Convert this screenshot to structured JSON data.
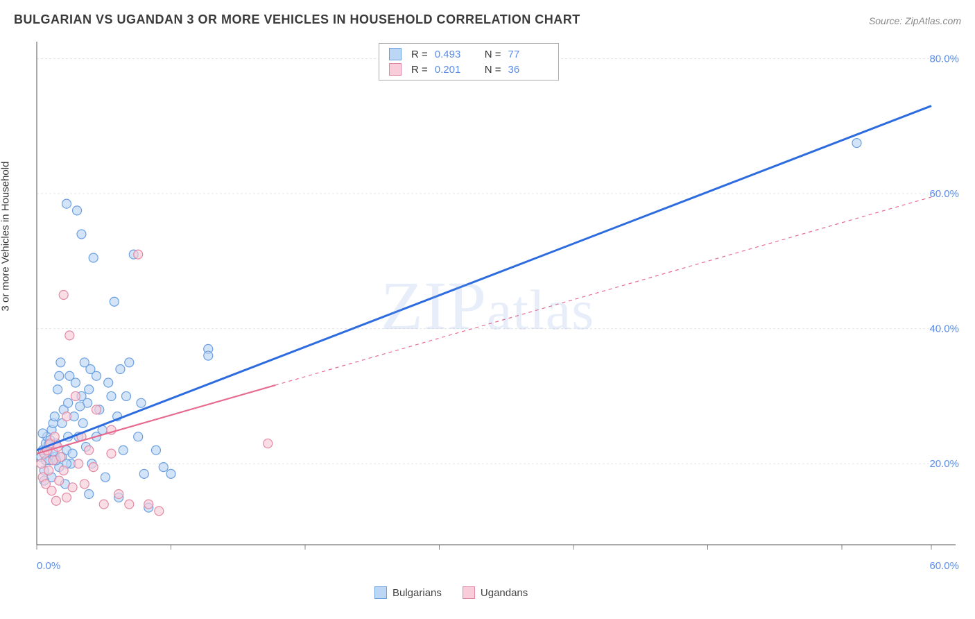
{
  "title": "BULGARIAN VS UGANDAN 3 OR MORE VEHICLES IN HOUSEHOLD CORRELATION CHART",
  "source": "Source: ZipAtlas.com",
  "ylabel": "3 or more Vehicles in Household",
  "watermark": "ZIPatlas",
  "chart": {
    "type": "scatter",
    "xlim": [
      0,
      60
    ],
    "ylim": [
      8,
      82
    ],
    "background_color": "#ffffff",
    "grid_color": "#e5e5e5",
    "grid_dash": "3,3",
    "axis_color": "#555555",
    "marker_radius": 6.5,
    "marker_stroke_width": 1.2,
    "x_ticks": [
      0,
      9,
      18,
      27,
      36,
      45,
      54,
      60
    ],
    "x_tick_labels": {
      "0": "0.0%",
      "60": "60.0%"
    },
    "y_gridlines": [
      20,
      40,
      60,
      80
    ],
    "y_tick_labels": {
      "20": "20.0%",
      "40": "40.0%",
      "60": "60.0%",
      "80": "80.0%"
    },
    "series": [
      {
        "name": "Bulgarians",
        "color_fill": "#bcd6f5",
        "color_stroke": "#6a9fe0",
        "trend_color": "#2d6cdf",
        "trend_width": 3,
        "trend": {
          "x1": 0,
          "y1": 22,
          "x2": 60,
          "y2": 73,
          "solid_until_x": 60
        },
        "R": "0.493",
        "N": "77",
        "points": [
          [
            0.3,
            21
          ],
          [
            0.4,
            22
          ],
          [
            0.5,
            19
          ],
          [
            0.6,
            23
          ],
          [
            0.7,
            24
          ],
          [
            0.8,
            21.5
          ],
          [
            0.9,
            20.5
          ],
          [
            1.0,
            25
          ],
          [
            1.0,
            18
          ],
          [
            1.1,
            26
          ],
          [
            1.2,
            27
          ],
          [
            1.3,
            23
          ],
          [
            1.4,
            31
          ],
          [
            1.5,
            33
          ],
          [
            1.5,
            19.5
          ],
          [
            1.6,
            35
          ],
          [
            1.7,
            21
          ],
          [
            1.8,
            28
          ],
          [
            1.9,
            17
          ],
          [
            2.0,
            58.5
          ],
          [
            2.0,
            22
          ],
          [
            2.1,
            29
          ],
          [
            2.2,
            33
          ],
          [
            2.3,
            20
          ],
          [
            2.5,
            27
          ],
          [
            2.6,
            32
          ],
          [
            2.7,
            57.5
          ],
          [
            2.8,
            24
          ],
          [
            3.0,
            54
          ],
          [
            3.0,
            30
          ],
          [
            3.2,
            35
          ],
          [
            3.3,
            22.5
          ],
          [
            3.4,
            29
          ],
          [
            3.5,
            15.5
          ],
          [
            3.6,
            34
          ],
          [
            3.7,
            20
          ],
          [
            3.8,
            50.5
          ],
          [
            4.0,
            33
          ],
          [
            4.2,
            28
          ],
          [
            4.4,
            25
          ],
          [
            4.6,
            18
          ],
          [
            4.8,
            32
          ],
          [
            5.0,
            30
          ],
          [
            5.2,
            44
          ],
          [
            5.4,
            27
          ],
          [
            5.5,
            15
          ],
          [
            5.6,
            34
          ],
          [
            5.8,
            22
          ],
          [
            6.0,
            30
          ],
          [
            6.2,
            35
          ],
          [
            6.5,
            51
          ],
          [
            6.8,
            24
          ],
          [
            7.0,
            29
          ],
          [
            7.2,
            18.5
          ],
          [
            7.5,
            13.5
          ],
          [
            8.0,
            22
          ],
          [
            8.5,
            19.5
          ],
          [
            9.0,
            18.5
          ],
          [
            11.5,
            37
          ],
          [
            11.5,
            36
          ],
          [
            55,
            67.5
          ],
          [
            1.2,
            21
          ],
          [
            1.3,
            20.5
          ],
          [
            0.9,
            23.5
          ],
          [
            2.1,
            24
          ],
          [
            2.4,
            21.5
          ],
          [
            3.1,
            26
          ],
          [
            0.4,
            24.5
          ],
          [
            0.6,
            20.5
          ],
          [
            0.8,
            22.8
          ],
          [
            1.1,
            21.8
          ],
          [
            1.7,
            26
          ],
          [
            2.0,
            20
          ],
          [
            2.9,
            28.5
          ],
          [
            3.5,
            31
          ],
          [
            4.0,
            24
          ],
          [
            0.5,
            17.5
          ]
        ]
      },
      {
        "name": "Ugandans",
        "color_fill": "#f8cdd9",
        "color_stroke": "#e28aa5",
        "trend_color": "#e76a8f",
        "trend_width": 2.2,
        "trend": {
          "x1": 0,
          "y1": 21.5,
          "x2": 60,
          "y2": 59.5,
          "solid_until_x": 16
        },
        "R": "0.201",
        "N": "36",
        "points": [
          [
            0.3,
            20
          ],
          [
            0.4,
            18
          ],
          [
            0.5,
            21.5
          ],
          [
            0.6,
            17
          ],
          [
            0.7,
            22
          ],
          [
            0.8,
            19
          ],
          [
            0.9,
            23
          ],
          [
            1.0,
            16
          ],
          [
            1.1,
            20.5
          ],
          [
            1.2,
            24
          ],
          [
            1.3,
            14.5
          ],
          [
            1.4,
            22.5
          ],
          [
            1.5,
            17.5
          ],
          [
            1.6,
            21
          ],
          [
            1.8,
            45
          ],
          [
            1.8,
            19
          ],
          [
            2.0,
            27
          ],
          [
            2.0,
            15
          ],
          [
            2.2,
            39
          ],
          [
            2.4,
            16.5
          ],
          [
            2.6,
            30
          ],
          [
            2.8,
            20
          ],
          [
            3.0,
            24
          ],
          [
            3.2,
            17
          ],
          [
            3.5,
            22
          ],
          [
            3.8,
            19.5
          ],
          [
            4.0,
            28
          ],
          [
            4.5,
            14
          ],
          [
            5.0,
            21.5
          ],
          [
            5.5,
            15.5
          ],
          [
            6.2,
            14
          ],
          [
            6.8,
            51
          ],
          [
            7.5,
            14
          ],
          [
            8.2,
            13
          ],
          [
            15.5,
            23
          ],
          [
            5.0,
            25
          ]
        ]
      }
    ]
  },
  "legend_top": {
    "rows": [
      {
        "swatch_fill": "#bcd6f5",
        "swatch_stroke": "#6a9fe0",
        "R_label": "R =",
        "R_value": "0.493",
        "N_label": "N =",
        "N_value": "77"
      },
      {
        "swatch_fill": "#f8cdd9",
        "swatch_stroke": "#e28aa5",
        "R_label": "R =",
        "R_value": "0.201",
        "N_label": "N =",
        "N_value": "36"
      }
    ]
  },
  "legend_bottom": {
    "items": [
      {
        "swatch_fill": "#bcd6f5",
        "swatch_stroke": "#6a9fe0",
        "label": "Bulgarians"
      },
      {
        "swatch_fill": "#f8cdd9",
        "swatch_stroke": "#e28aa5",
        "label": "Ugandans"
      }
    ]
  }
}
